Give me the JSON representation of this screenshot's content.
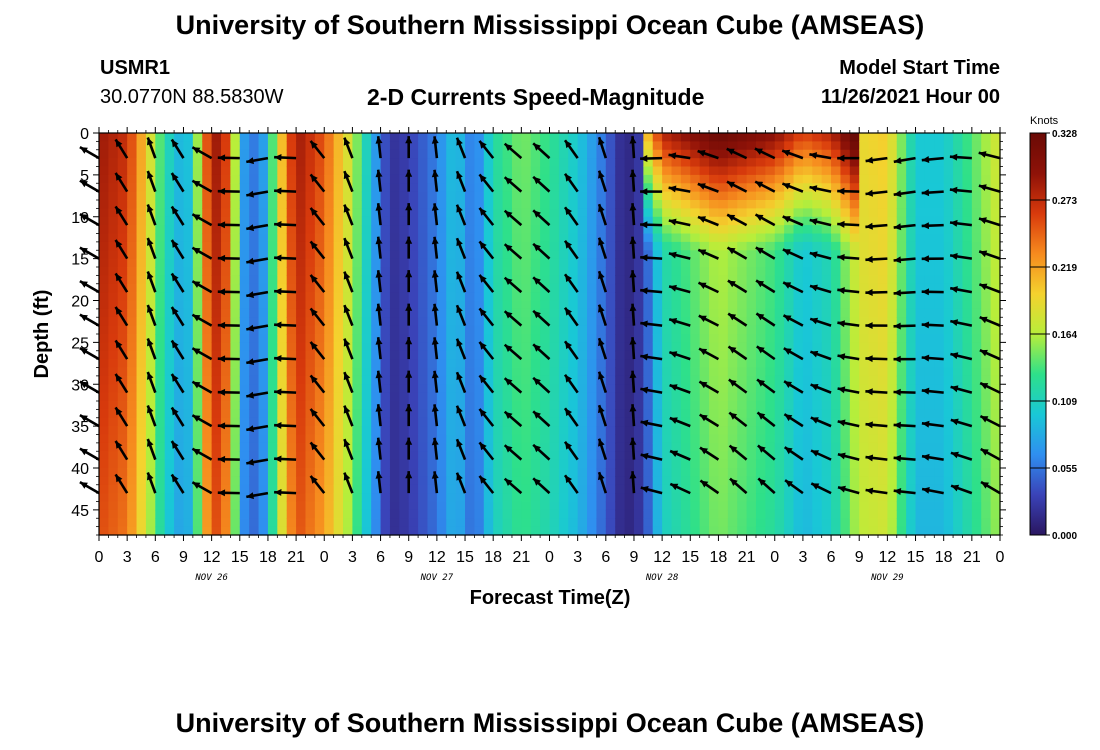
{
  "header": {
    "title": "University of Southern Mississippi Ocean Cube (AMSEAS)",
    "station_id": "USMR1",
    "coordinates": "30.0770N  88.5830W",
    "subtitle": "2-D Currents Speed-Magnitude",
    "model_start_label": "Model Start Time",
    "model_start_value": "11/26/2021 Hour 00"
  },
  "footer": {
    "title": "University of Southern Mississippi Ocean Cube (AMSEAS)"
  },
  "colors": {
    "scale": [
      "#2a1660",
      "#3a43b8",
      "#2f8ff0",
      "#19c8d6",
      "#2ee08a",
      "#b8ee3a",
      "#f4d22e",
      "#f68a1e",
      "#d83a0c",
      "#8e1208",
      "#6a0a05"
    ],
    "arrow": "#000000"
  },
  "chart_data": {
    "type": "heatmap",
    "title": "2-D Currents Speed-Magnitude",
    "xlabel": "Forecast Time(Z)",
    "ylabel": "Depth (ft)",
    "xlim": [
      0,
      96
    ],
    "ylim": [
      0,
      48
    ],
    "y_ticks": [
      0,
      5,
      10,
      15,
      20,
      25,
      30,
      35,
      40,
      45
    ],
    "x_tick_labels": [
      "0",
      "3",
      "6",
      "9",
      "12",
      "15",
      "18",
      "21",
      "0",
      "3",
      "6",
      "9",
      "12",
      "15",
      "18",
      "21",
      "0",
      "3",
      "6",
      "9",
      "12",
      "15",
      "18",
      "21",
      "0",
      "3",
      "6",
      "9",
      "12",
      "15",
      "18",
      "21",
      "0"
    ],
    "date_labels": [
      {
        "label": "NOV 26",
        "hour": 12
      },
      {
        "label": "NOV 27",
        "hour": 36
      },
      {
        "label": "NOV 28",
        "hour": 60
      },
      {
        "label": "NOV 29",
        "hour": 84
      }
    ],
    "colorbar": {
      "label": "Knots",
      "min": 0.0,
      "max": 0.328,
      "ticks": [
        "0.328",
        "0.273",
        "0.219",
        "0.164",
        "0.109",
        "0.055",
        "0.000"
      ]
    },
    "speed_profile_knots": [
      {
        "hour": 0,
        "speed": 0.29
      },
      {
        "hour": 3,
        "speed": 0.27
      },
      {
        "hour": 5,
        "speed": 0.2
      },
      {
        "hour": 7,
        "speed": 0.12
      },
      {
        "hour": 9,
        "speed": 0.08
      },
      {
        "hour": 10,
        "speed": 0.11
      },
      {
        "hour": 12,
        "speed": 0.3
      },
      {
        "hour": 14,
        "speed": 0.25
      },
      {
        "hour": 15,
        "speed": 0.08
      },
      {
        "hour": 17,
        "speed": 0.05
      },
      {
        "hour": 18,
        "speed": 0.1
      },
      {
        "hour": 19,
        "speed": 0.18
      },
      {
        "hour": 21,
        "speed": 0.29
      },
      {
        "hour": 24,
        "speed": 0.25
      },
      {
        "hour": 27,
        "speed": 0.17
      },
      {
        "hour": 29,
        "speed": 0.09
      },
      {
        "hour": 31,
        "speed": 0.02
      },
      {
        "hour": 33,
        "speed": 0.03
      },
      {
        "hour": 36,
        "speed": 0.06
      },
      {
        "hour": 38,
        "speed": 0.1
      },
      {
        "hour": 40,
        "speed": 0.05
      },
      {
        "hour": 42,
        "speed": 0.12
      },
      {
        "hour": 45,
        "speed": 0.15
      },
      {
        "hour": 48,
        "speed": 0.13
      },
      {
        "hour": 51,
        "speed": 0.1
      },
      {
        "hour": 54,
        "speed": 0.05
      },
      {
        "hour": 56,
        "speed": 0.01
      },
      {
        "hour": 58,
        "speed": 0.03
      },
      {
        "hour": 60,
        "speed": 0.12
      },
      {
        "hour": 66,
        "speed": 0.17
      },
      {
        "hour": 72,
        "speed": 0.14
      },
      {
        "hour": 75,
        "speed": 0.1
      },
      {
        "hour": 78,
        "speed": 0.12
      },
      {
        "hour": 81,
        "speed": 0.19
      },
      {
        "hour": 84,
        "speed": 0.2
      },
      {
        "hour": 87,
        "speed": 0.1
      },
      {
        "hour": 90,
        "speed": 0.1
      },
      {
        "hour": 93,
        "speed": 0.14
      },
      {
        "hour": 96,
        "speed": 0.18
      }
    ]
  }
}
